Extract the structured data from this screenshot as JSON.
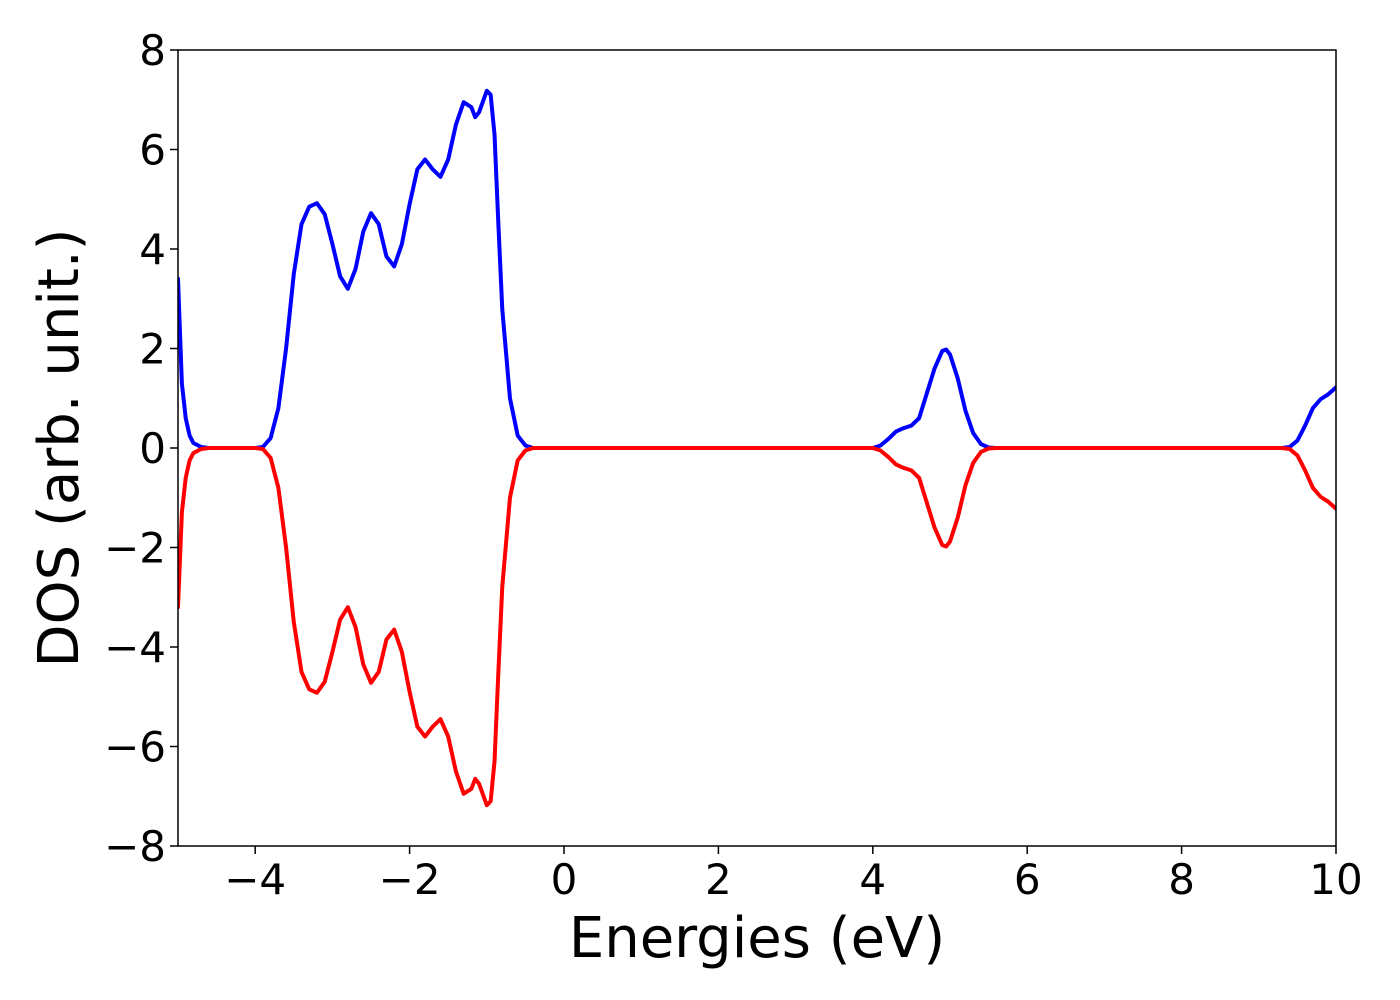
{
  "chart_data": {
    "type": "line",
    "title": "",
    "xlabel": "Energies (eV)",
    "ylabel": "DOS (arb. unit.)",
    "xlim": [
      -5,
      10
    ],
    "ylim": [
      -8,
      8
    ],
    "xticks": [
      -4,
      -2,
      0,
      2,
      4,
      6,
      8,
      10
    ],
    "yticks": [
      -8,
      -6,
      -4,
      -2,
      0,
      2,
      4,
      6,
      8
    ],
    "xtick_labels": [
      "−4",
      "−2",
      "0",
      "2",
      "4",
      "6",
      "8",
      "10"
    ],
    "ytick_labels": [
      "−8",
      "−6",
      "−4",
      "−2",
      "0",
      "2",
      "4",
      "6",
      "8"
    ],
    "grid": false,
    "legend": "none",
    "series": [
      {
        "color": "#0000ff",
        "points": [
          [
            -5.0,
            3.4
          ],
          [
            -4.95,
            1.3
          ],
          [
            -4.9,
            0.6
          ],
          [
            -4.85,
            0.25
          ],
          [
            -4.8,
            0.1
          ],
          [
            -4.7,
            0.02
          ],
          [
            -4.6,
            0.0
          ],
          [
            -4.0,
            0.0
          ],
          [
            -3.9,
            0.02
          ],
          [
            -3.8,
            0.2
          ],
          [
            -3.7,
            0.8
          ],
          [
            -3.6,
            2.0
          ],
          [
            -3.5,
            3.5
          ],
          [
            -3.4,
            4.5
          ],
          [
            -3.3,
            4.85
          ],
          [
            -3.2,
            4.92
          ],
          [
            -3.1,
            4.7
          ],
          [
            -3.0,
            4.1
          ],
          [
            -2.9,
            3.45
          ],
          [
            -2.8,
            3.2
          ],
          [
            -2.7,
            3.6
          ],
          [
            -2.6,
            4.35
          ],
          [
            -2.5,
            4.72
          ],
          [
            -2.4,
            4.5
          ],
          [
            -2.3,
            3.85
          ],
          [
            -2.2,
            3.65
          ],
          [
            -2.1,
            4.1
          ],
          [
            -2.0,
            4.9
          ],
          [
            -1.9,
            5.6
          ],
          [
            -1.8,
            5.8
          ],
          [
            -1.7,
            5.6
          ],
          [
            -1.6,
            5.45
          ],
          [
            -1.5,
            5.8
          ],
          [
            -1.4,
            6.5
          ],
          [
            -1.3,
            6.95
          ],
          [
            -1.2,
            6.85
          ],
          [
            -1.15,
            6.65
          ],
          [
            -1.1,
            6.75
          ],
          [
            -1.0,
            7.18
          ],
          [
            -0.95,
            7.1
          ],
          [
            -0.9,
            6.3
          ],
          [
            -0.85,
            4.5
          ],
          [
            -0.8,
            2.8
          ],
          [
            -0.7,
            1.0
          ],
          [
            -0.6,
            0.25
          ],
          [
            -0.5,
            0.05
          ],
          [
            -0.4,
            0.0
          ],
          [
            4.0,
            0.0
          ],
          [
            4.1,
            0.05
          ],
          [
            4.2,
            0.18
          ],
          [
            4.3,
            0.33
          ],
          [
            4.4,
            0.4
          ],
          [
            4.5,
            0.45
          ],
          [
            4.6,
            0.6
          ],
          [
            4.7,
            1.1
          ],
          [
            4.8,
            1.6
          ],
          [
            4.9,
            1.95
          ],
          [
            4.95,
            1.98
          ],
          [
            5.0,
            1.88
          ],
          [
            5.1,
            1.4
          ],
          [
            5.2,
            0.75
          ],
          [
            5.3,
            0.3
          ],
          [
            5.4,
            0.08
          ],
          [
            5.5,
            0.01
          ],
          [
            5.6,
            0.0
          ],
          [
            9.3,
            0.0
          ],
          [
            9.4,
            0.02
          ],
          [
            9.5,
            0.15
          ],
          [
            9.6,
            0.45
          ],
          [
            9.7,
            0.8
          ],
          [
            9.8,
            0.98
          ],
          [
            9.9,
            1.08
          ],
          [
            10.0,
            1.22
          ]
        ]
      },
      {
        "color": "#ff0000",
        "points": [
          [
            -5.0,
            -3.2
          ],
          [
            -4.95,
            -1.3
          ],
          [
            -4.9,
            -0.6
          ],
          [
            -4.85,
            -0.25
          ],
          [
            -4.8,
            -0.1
          ],
          [
            -4.7,
            -0.02
          ],
          [
            -4.6,
            0.0
          ],
          [
            -4.0,
            0.0
          ],
          [
            -3.9,
            -0.02
          ],
          [
            -3.8,
            -0.2
          ],
          [
            -3.7,
            -0.8
          ],
          [
            -3.6,
            -2.0
          ],
          [
            -3.5,
            -3.5
          ],
          [
            -3.4,
            -4.5
          ],
          [
            -3.3,
            -4.85
          ],
          [
            -3.2,
            -4.92
          ],
          [
            -3.1,
            -4.7
          ],
          [
            -3.0,
            -4.1
          ],
          [
            -2.9,
            -3.45
          ],
          [
            -2.8,
            -3.2
          ],
          [
            -2.7,
            -3.6
          ],
          [
            -2.6,
            -4.35
          ],
          [
            -2.5,
            -4.72
          ],
          [
            -2.4,
            -4.5
          ],
          [
            -2.3,
            -3.85
          ],
          [
            -2.2,
            -3.65
          ],
          [
            -2.1,
            -4.1
          ],
          [
            -2.0,
            -4.9
          ],
          [
            -1.9,
            -5.6
          ],
          [
            -1.8,
            -5.8
          ],
          [
            -1.7,
            -5.6
          ],
          [
            -1.6,
            -5.45
          ],
          [
            -1.5,
            -5.8
          ],
          [
            -1.4,
            -6.5
          ],
          [
            -1.3,
            -6.95
          ],
          [
            -1.2,
            -6.85
          ],
          [
            -1.15,
            -6.65
          ],
          [
            -1.1,
            -6.75
          ],
          [
            -1.0,
            -7.18
          ],
          [
            -0.95,
            -7.1
          ],
          [
            -0.9,
            -6.3
          ],
          [
            -0.85,
            -4.5
          ],
          [
            -0.8,
            -2.8
          ],
          [
            -0.7,
            -1.0
          ],
          [
            -0.6,
            -0.25
          ],
          [
            -0.5,
            -0.05
          ],
          [
            -0.4,
            0.0
          ],
          [
            4.0,
            0.0
          ],
          [
            4.1,
            -0.05
          ],
          [
            4.2,
            -0.18
          ],
          [
            4.3,
            -0.33
          ],
          [
            4.4,
            -0.4
          ],
          [
            4.5,
            -0.45
          ],
          [
            4.6,
            -0.6
          ],
          [
            4.7,
            -1.1
          ],
          [
            4.8,
            -1.6
          ],
          [
            4.9,
            -1.95
          ],
          [
            4.95,
            -1.98
          ],
          [
            5.0,
            -1.88
          ],
          [
            5.1,
            -1.4
          ],
          [
            5.2,
            -0.75
          ],
          [
            5.3,
            -0.3
          ],
          [
            5.4,
            -0.08
          ],
          [
            5.5,
            -0.01
          ],
          [
            5.6,
            0.0
          ],
          [
            9.3,
            0.0
          ],
          [
            9.4,
            -0.02
          ],
          [
            9.5,
            -0.15
          ],
          [
            9.6,
            -0.45
          ],
          [
            9.7,
            -0.8
          ],
          [
            9.8,
            -0.98
          ],
          [
            9.9,
            -1.08
          ],
          [
            10.0,
            -1.22
          ]
        ]
      }
    ]
  }
}
